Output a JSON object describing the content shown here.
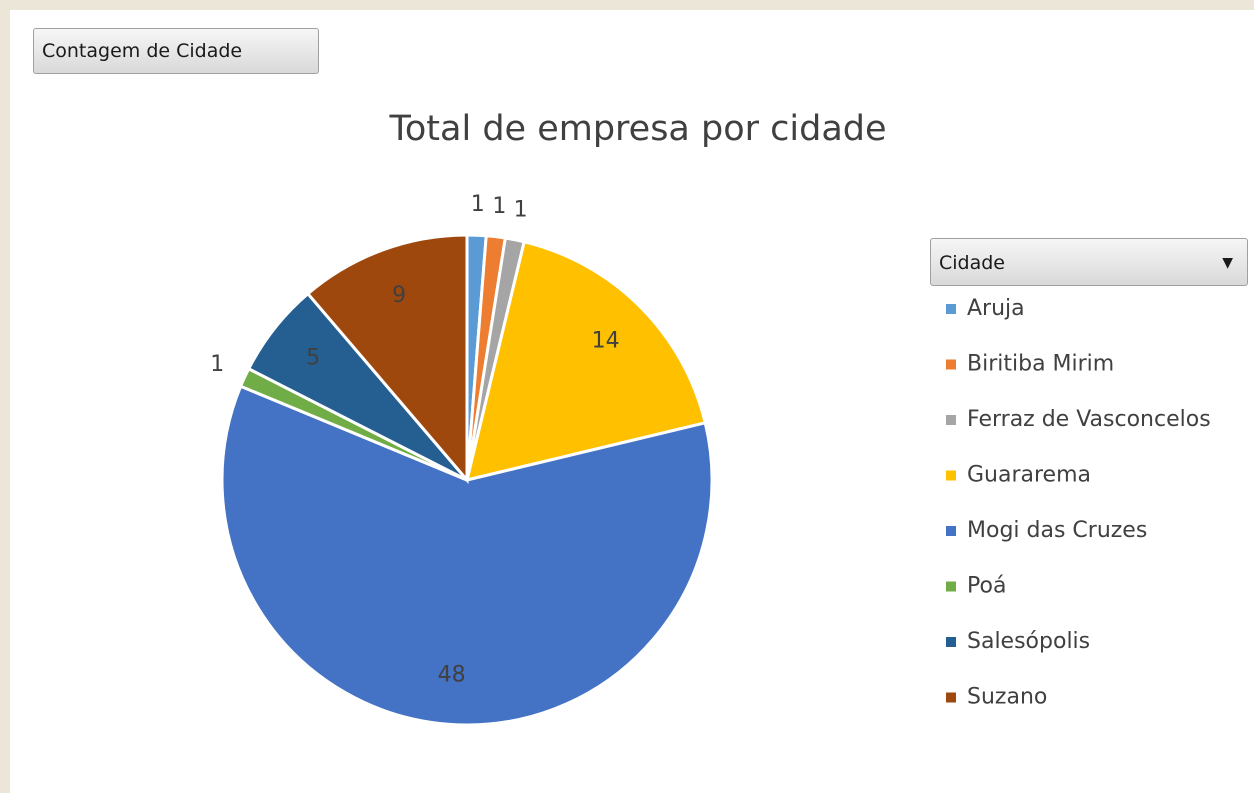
{
  "field_button": "Contagem de Cidade",
  "chart_data": {
    "type": "pie",
    "title": "Total de empresa por cidade",
    "legend_title": "Cidade",
    "categories": [
      "Aruja",
      "Biritiba Mirim",
      "Ferraz de Vasconcelos",
      "Guararema",
      "Mogi das Cruzes",
      "Poá",
      "Salesópolis",
      "Suzano"
    ],
    "values": [
      1,
      1,
      1,
      14,
      48,
      1,
      5,
      9
    ],
    "colors": [
      "#5b9bd5",
      "#ed7d31",
      "#a5a5a5",
      "#ffc000",
      "#4472c4",
      "#70ad47",
      "#255e91",
      "#9e480e"
    ],
    "legend": "right"
  }
}
